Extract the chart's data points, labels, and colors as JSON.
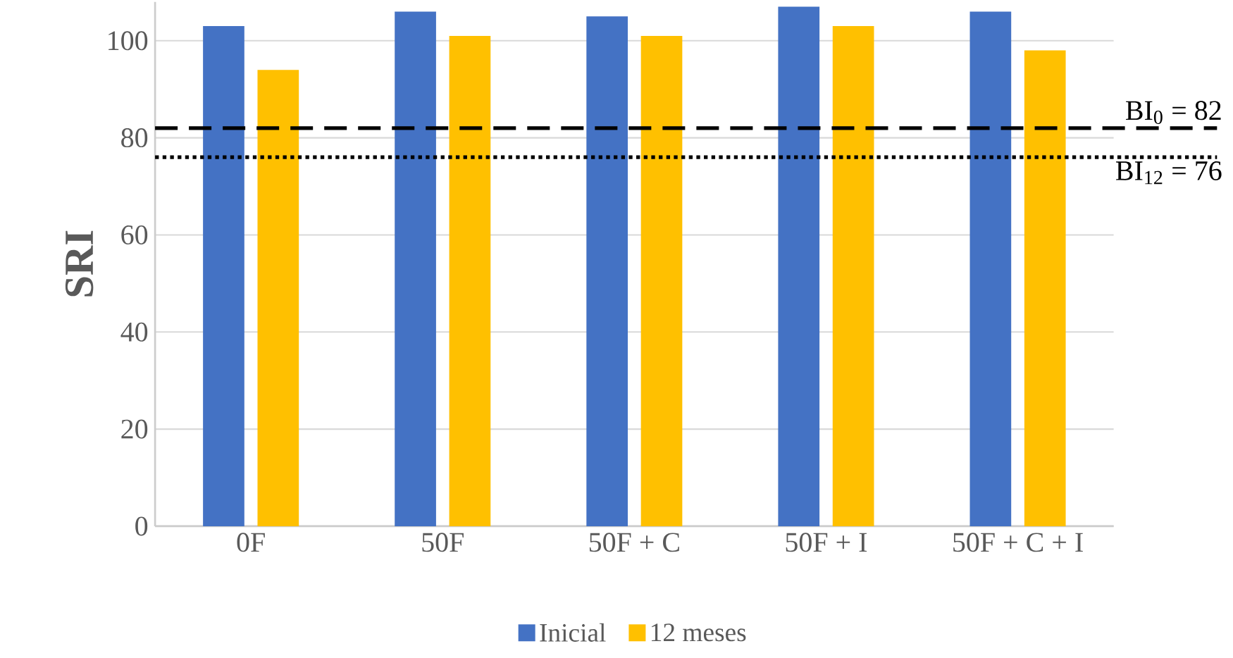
{
  "chart_data": {
    "type": "bar",
    "ylabel": "SRI",
    "categories": [
      "0F",
      "50F",
      "50F + C",
      "50F + I",
      "50F + C + I"
    ],
    "series": [
      {
        "name": "Inicial",
        "color": "#4472c4",
        "values": [
          103,
          106,
          105,
          107,
          106
        ]
      },
      {
        "name": "12 meses",
        "color": "#ffc000",
        "values": [
          94,
          101,
          101,
          103,
          98
        ]
      }
    ],
    "ylim": [
      0,
      108
    ],
    "yticks": [
      0,
      20,
      40,
      60,
      80,
      100
    ],
    "grid": "y",
    "legend": "bottom",
    "ref_lines": [
      {
        "axis": "y",
        "value": 82,
        "label": "BI$_{0}$ = 82",
        "color": "#000000",
        "line_style": "dashed"
      },
      {
        "axis": "y",
        "value": 76,
        "label": "BI$_{12}$ = 76",
        "color": "#000000",
        "line_style": "dotted"
      }
    ]
  }
}
